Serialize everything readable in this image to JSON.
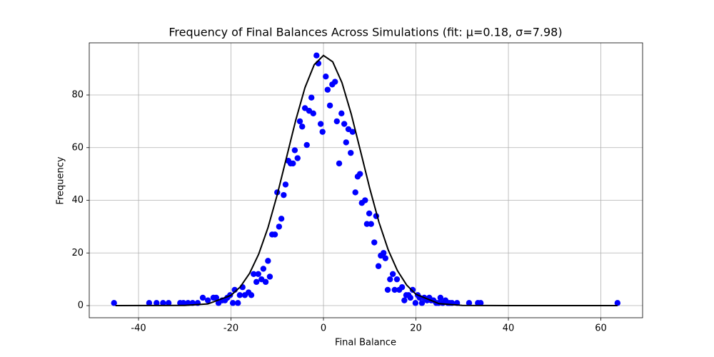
{
  "chart_data": {
    "type": "scatter",
    "title": "Frequency of Final Balances Across Simulations (fit: μ=0.18, σ=7.98)",
    "x_label": "Final Balance",
    "y_label": "Frequency",
    "xlim": [
      -50.66,
      69.03
    ],
    "ylim": [
      -4.6,
      99.8
    ],
    "xticks": [
      -40,
      -20,
      0,
      20,
      40,
      60
    ],
    "yticks": [
      0,
      20,
      40,
      60,
      80
    ],
    "grid": true,
    "series": [
      {
        "type": "scatter",
        "color": "#0000ff",
        "x": [
          -45.3,
          -37.7,
          -36.1,
          -34.7,
          -33.5,
          -31.0,
          -30.3,
          -29.3,
          -28.3,
          -27.2,
          -26.1,
          -25.0,
          -23.8,
          -23.2,
          -22.7,
          -21.9,
          -21.3,
          -20.8,
          -20.2,
          -19.6,
          -19.2,
          -18.5,
          -18.1,
          -17.5,
          -17.0,
          -16.2,
          -15.6,
          -15.1,
          -14.5,
          -14.1,
          -13.4,
          -13.0,
          -12.5,
          -12.0,
          -11.6,
          -11.1,
          -10.5,
          -10.0,
          -9.6,
          -9.1,
          -8.6,
          -8.2,
          -7.6,
          -7.1,
          -6.6,
          -6.2,
          -5.6,
          -5.1,
          -4.6,
          -4.0,
          -3.6,
          -3.1,
          -2.6,
          -2.2,
          -1.5,
          -1.1,
          -0.6,
          -0.2,
          0.5,
          0.9,
          1.4,
          1.9,
          2.5,
          2.9,
          3.4,
          3.9,
          4.5,
          4.9,
          5.4,
          5.9,
          6.3,
          6.9,
          7.4,
          7.9,
          8.3,
          9.0,
          9.4,
          9.9,
          10.3,
          11.0,
          11.4,
          11.9,
          12.4,
          13.0,
          13.4,
          13.9,
          14.4,
          15.0,
          15.4,
          15.9,
          16.4,
          17.0,
          17.5,
          17.9,
          18.4,
          18.8,
          19.3,
          19.9,
          20.4,
          20.8,
          21.3,
          21.8,
          22.4,
          22.9,
          23.3,
          23.8,
          24.4,
          24.9,
          25.3,
          25.8,
          26.4,
          26.9,
          27.3,
          27.8,
          28.9,
          31.5,
          33.4,
          34.0,
          63.6
        ],
        "values": [
          1,
          1,
          1,
          1,
          1,
          1,
          1,
          1,
          1,
          1,
          3,
          2,
          3,
          3,
          1,
          2,
          2,
          3,
          4,
          1,
          6,
          1,
          4,
          7,
          4,
          5,
          4,
          12,
          9,
          12,
          10,
          14,
          9,
          17,
          11,
          27,
          27,
          43,
          30,
          33,
          42,
          46,
          55,
          54,
          54,
          59,
          56,
          70,
          68,
          75,
          61,
          74,
          79,
          73,
          95,
          92,
          69,
          66,
          87,
          82,
          76,
          84,
          85,
          70,
          54,
          73,
          69,
          62,
          67,
          58,
          66,
          43,
          49,
          50,
          39,
          40,
          31,
          35,
          31,
          24,
          34,
          15,
          19,
          20,
          18,
          6,
          10,
          12,
          6,
          10,
          6,
          7,
          2,
          4,
          4,
          3,
          6,
          1,
          4,
          3,
          1,
          3,
          2,
          3,
          2,
          2,
          1,
          1,
          3,
          1,
          2,
          1,
          1,
          1,
          1,
          1,
          1,
          1,
          1
        ]
      },
      {
        "type": "line",
        "color": "#000000",
        "x": [
          -45,
          -30,
          -25,
          -20,
          -18,
          -16,
          -14,
          -12,
          -10,
          -8,
          -6,
          -4,
          -2,
          0,
          2,
          4,
          6,
          8,
          10,
          12,
          14,
          16,
          18,
          20,
          25,
          30,
          40,
          63.6
        ],
        "values": [
          0,
          0.07,
          0.65,
          3.9,
          7.1,
          12.2,
          19.6,
          29.6,
          42.1,
          56.2,
          70.4,
          82.8,
          91.5,
          95.0,
          92.6,
          84.7,
          72.8,
          58.8,
          44.6,
          31.7,
          21.2,
          13.3,
          7.8,
          4.3,
          0.75,
          0.09,
          0,
          0
        ]
      }
    ]
  }
}
